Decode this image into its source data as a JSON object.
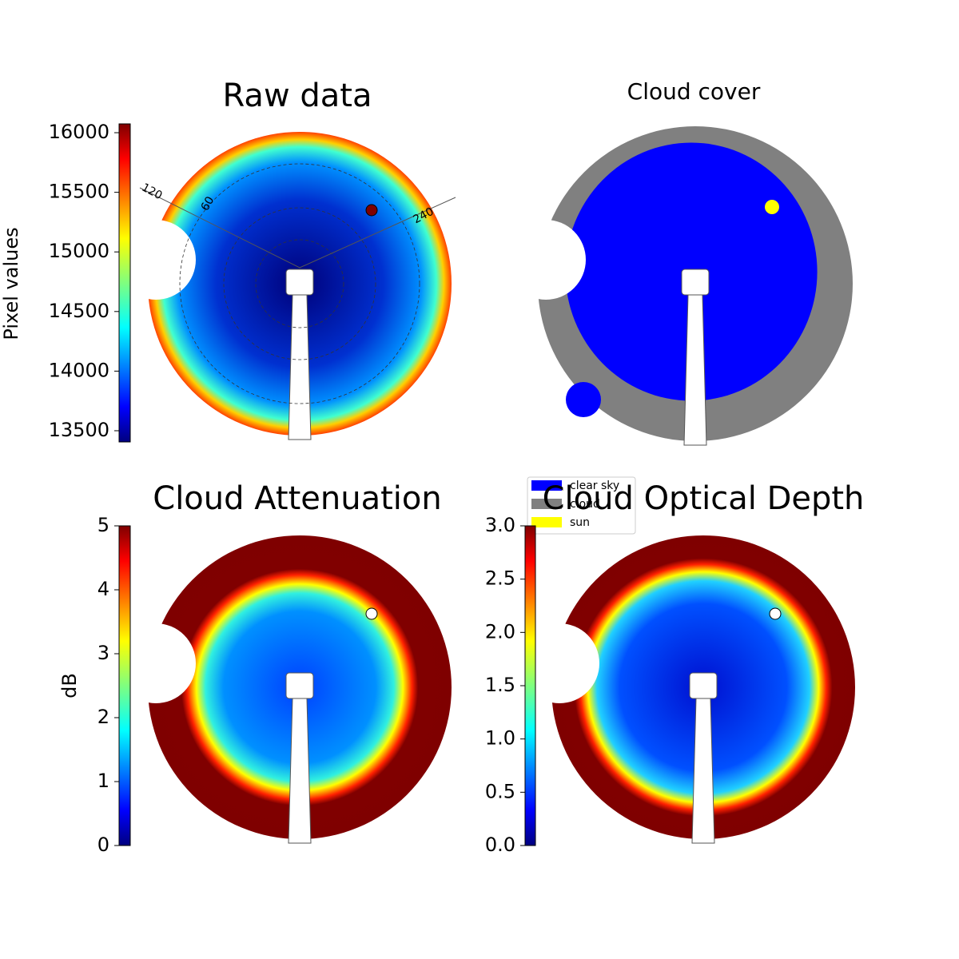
{
  "chart_data": [
    {
      "type": "image",
      "title": "Raw data",
      "colorbar_label": "Pixel values",
      "clim": [
        13406,
        16074
      ],
      "cticks": [
        13500,
        14000,
        14500,
        15000,
        15500,
        16000
      ],
      "annotations": [
        "120",
        "60",
        "240"
      ]
    },
    {
      "type": "image",
      "title": "Cloud cover",
      "legend": [
        {
          "name": "clear sky",
          "color": "#0000ff"
        },
        {
          "name": "cloud",
          "color": "#808080"
        },
        {
          "name": "sun",
          "color": "#ffff00"
        }
      ]
    },
    {
      "type": "image",
      "title": "Cloud Attenuation",
      "colorbar_label": "dB",
      "clim": [
        0,
        5
      ],
      "cticks": [
        0,
        1,
        2,
        3,
        4,
        5
      ]
    },
    {
      "type": "image",
      "title": "Cloud Optical Depth",
      "clim": [
        0,
        3
      ],
      "cticks": [
        {
          "value": 0,
          "label": "0.0"
        },
        0.5,
        {
          "value": 1,
          "label": "1.0"
        },
        1.5,
        {
          "value": 2,
          "label": "2.0"
        },
        2.5,
        {
          "value": 3,
          "label": "3.0"
        }
      ]
    }
  ]
}
